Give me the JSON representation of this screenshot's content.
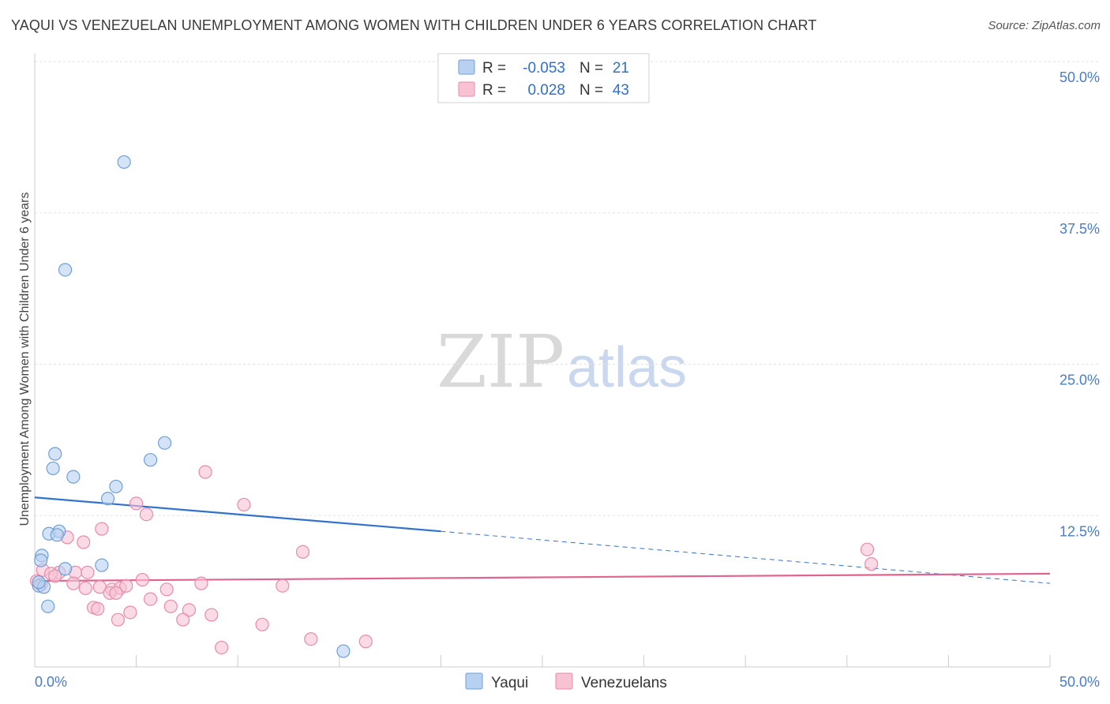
{
  "header": {
    "title": "YAQUI VS VENEZUELAN UNEMPLOYMENT AMONG WOMEN WITH CHILDREN UNDER 6 YEARS CORRELATION CHART",
    "source": "Source: ZipAtlas.com"
  },
  "watermark": {
    "zip": "ZIP",
    "atlas": "atlas"
  },
  "legend": {
    "rows": [
      {
        "r_label": "R =",
        "r_value": "-0.053",
        "n_label": "N =",
        "n_value": "21"
      },
      {
        "r_label": "R =",
        "r_value": "0.028",
        "n_label": "N =",
        "n_value": "43"
      }
    ]
  },
  "colors": {
    "yaqui_fill": "#b9d1f0",
    "yaqui_stroke": "#6f9fd8",
    "yaqui_line": "#3372cc",
    "venez_fill": "#f7c3d3",
    "venez_stroke": "#e98aa9",
    "venez_line": "#e0648f"
  },
  "chart_data": {
    "type": "scatter",
    "title": "YAQUI VS VENEZUELAN UNEMPLOYMENT AMONG WOMEN WITH CHILDREN UNDER 6 YEARS CORRELATION CHART",
    "xlabel": "",
    "ylabel": "Unemployment Among Women with Children Under 6 years",
    "xlim": [
      0,
      50
    ],
    "ylim": [
      0,
      50
    ],
    "x_tick_labels": [
      "0.0%",
      "50.0%"
    ],
    "y_ticks": [
      {
        "value": 50,
        "label": "50.0%"
      },
      {
        "value": 37.5,
        "label": "37.5%"
      },
      {
        "value": 25,
        "label": "25.0%"
      },
      {
        "value": 12.5,
        "label": "12.5%"
      }
    ],
    "grid": true,
    "legend_position": "top-center",
    "series": [
      {
        "name": "Yaqui",
        "r": -0.053,
        "n": 21,
        "points": [
          [
            4.4,
            41.7
          ],
          [
            1.5,
            32.8
          ],
          [
            6.4,
            18.5
          ],
          [
            5.7,
            17.1
          ],
          [
            1.0,
            17.6
          ],
          [
            0.9,
            16.4
          ],
          [
            1.9,
            15.7
          ],
          [
            4.0,
            14.9
          ],
          [
            3.6,
            13.9
          ],
          [
            0.7,
            11.0
          ],
          [
            1.2,
            11.2
          ],
          [
            1.1,
            10.9
          ],
          [
            0.35,
            9.2
          ],
          [
            0.3,
            8.8
          ],
          [
            3.3,
            8.4
          ],
          [
            1.5,
            8.1
          ],
          [
            0.2,
            6.7
          ],
          [
            0.45,
            6.6
          ],
          [
            0.2,
            7.0
          ],
          [
            0.65,
            5.0
          ],
          [
            15.2,
            1.3
          ]
        ],
        "trend_solid": {
          "x": [
            0,
            20
          ],
          "y": [
            14.0,
            11.2
          ]
        },
        "trend_dashed": {
          "x": [
            20,
            50
          ],
          "y": [
            11.2,
            6.9
          ]
        }
      },
      {
        "name": "Venezuelans",
        "r": 0.028,
        "n": 43,
        "points": [
          [
            8.4,
            16.1
          ],
          [
            5.0,
            13.5
          ],
          [
            10.3,
            13.4
          ],
          [
            5.5,
            12.6
          ],
          [
            3.3,
            11.4
          ],
          [
            1.6,
            10.7
          ],
          [
            2.4,
            10.3
          ],
          [
            13.2,
            9.5
          ],
          [
            41.0,
            9.7
          ],
          [
            41.2,
            8.5
          ],
          [
            0.4,
            8.0
          ],
          [
            1.2,
            7.8
          ],
          [
            0.8,
            7.7
          ],
          [
            1.0,
            7.5
          ],
          [
            2.0,
            7.8
          ],
          [
            2.6,
            7.8
          ],
          [
            0.1,
            7.1
          ],
          [
            0.3,
            6.8
          ],
          [
            1.9,
            6.9
          ],
          [
            5.3,
            7.2
          ],
          [
            8.2,
            6.9
          ],
          [
            12.2,
            6.7
          ],
          [
            2.5,
            6.5
          ],
          [
            3.2,
            6.6
          ],
          [
            3.8,
            6.4
          ],
          [
            4.2,
            6.5
          ],
          [
            4.5,
            6.7
          ],
          [
            6.5,
            6.4
          ],
          [
            3.7,
            6.1
          ],
          [
            4.0,
            6.1
          ],
          [
            5.7,
            5.6
          ],
          [
            6.7,
            5.0
          ],
          [
            2.9,
            4.9
          ],
          [
            3.1,
            4.8
          ],
          [
            7.6,
            4.7
          ],
          [
            4.7,
            4.5
          ],
          [
            8.7,
            4.3
          ],
          [
            4.1,
            3.9
          ],
          [
            7.3,
            3.9
          ],
          [
            11.2,
            3.5
          ],
          [
            13.6,
            2.3
          ],
          [
            16.3,
            2.1
          ],
          [
            9.2,
            1.6
          ]
        ],
        "trend_solid": {
          "x": [
            0,
            50
          ],
          "y": [
            7.1,
            7.7
          ]
        }
      }
    ]
  }
}
